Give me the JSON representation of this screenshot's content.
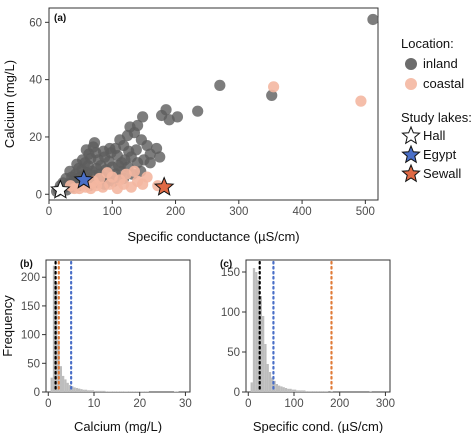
{
  "colors": {
    "inland": "#5c5c5c",
    "coastal": "#f4b7a1",
    "hall": "#ffffff",
    "egypt": "#4a6fc7",
    "sewall": "#e06a45",
    "hist": "#bdbdbd",
    "median_line": "#000000",
    "egypt_line": "#4a6fc7",
    "sewall_line": "#e07b39"
  },
  "legend": {
    "location_title": "Location:",
    "location_items": [
      "inland",
      "coastal"
    ],
    "lakes_title": "Study lakes:",
    "lakes_items": [
      "Hall",
      "Egypt",
      "Sewall"
    ]
  },
  "chart_data": [
    {
      "id": "a",
      "panel_label": "(a)",
      "type": "scatter",
      "xlabel": "Specific conductance (µS/cm)",
      "ylabel": "Calcium (mg/L)",
      "xlim": [
        0,
        520
      ],
      "ylim": [
        -2,
        65
      ],
      "xticks": [
        0,
        100,
        200,
        300,
        400,
        500
      ],
      "yticks": [
        0,
        20,
        40,
        60
      ],
      "series": [
        {
          "name": "inland",
          "points": [
            [
              512,
              61
            ],
            [
              270,
              38
            ],
            [
              352,
              34.5
            ],
            [
              235,
              29
            ],
            [
              203,
              27
            ],
            [
              185,
              29.5
            ],
            [
              178,
              27.5
            ],
            [
              190,
              26
            ],
            [
              148,
              27
            ],
            [
              140,
              24
            ],
            [
              128,
              23.5
            ],
            [
              135,
              21.5
            ],
            [
              124,
              20.5
            ],
            [
              146,
              19
            ],
            [
              155,
              17
            ],
            [
              112,
              19
            ],
            [
              118,
              17
            ],
            [
              105,
              16
            ],
            [
              72,
              18
            ],
            [
              98,
              14.5
            ],
            [
              88,
              13
            ],
            [
              126,
              15
            ],
            [
              138,
              15.5
            ],
            [
              160,
              14
            ],
            [
              170,
              16
            ],
            [
              150,
              12
            ],
            [
              115,
              11
            ],
            [
              95,
              11.5
            ],
            [
              82,
              10
            ],
            [
              75,
              9
            ],
            [
              68,
              8
            ],
            [
              60,
              7.5
            ],
            [
              55,
              6.5
            ],
            [
              50,
              6
            ],
            [
              45,
              5.5
            ],
            [
              40,
              5
            ],
            [
              35,
              4
            ],
            [
              30,
              3.5
            ],
            [
              25,
              2.5
            ],
            [
              20,
              2
            ],
            [
              15,
              1.5
            ],
            [
              65,
              5
            ],
            [
              70,
              6.5
            ],
            [
              80,
              7
            ],
            [
              90,
              8.5
            ],
            [
              100,
              9.5
            ],
            [
              110,
              10
            ],
            [
              120,
              12
            ],
            [
              130,
              13
            ],
            [
              58,
              4
            ],
            [
              48,
              3
            ],
            [
              38,
              2.5
            ],
            [
              28,
              1.5
            ],
            [
              42,
              7
            ],
            [
              52,
              8.5
            ],
            [
              62,
              10
            ],
            [
              78,
              12
            ],
            [
              85,
              6
            ],
            [
              92,
              5
            ],
            [
              105,
              7
            ],
            [
              115,
              8
            ],
            [
              125,
              9.5
            ],
            [
              140,
              11
            ],
            [
              160,
              11
            ],
            [
              175,
              13
            ],
            [
              108,
              13.5
            ],
            [
              96,
              16
            ],
            [
              86,
              15
            ],
            [
              66,
              12.5
            ],
            [
              74,
              14.5
            ],
            [
              57,
              11
            ],
            [
              47,
              9
            ],
            [
              36,
              6
            ],
            [
              33,
              8
            ],
            [
              44,
              10.5
            ],
            [
              53,
              12
            ],
            [
              63,
              14
            ],
            [
              22,
              4
            ],
            [
              27,
              5.5
            ],
            [
              18,
              3
            ],
            [
              12,
              1
            ],
            [
              64,
              3
            ],
            [
              76,
              4
            ],
            [
              88,
              3.5
            ],
            [
              102,
              4.5
            ],
            [
              118,
              5.5
            ],
            [
              132,
              7
            ],
            [
              145,
              8
            ],
            [
              59,
              15.5
            ],
            [
              70,
              16.5
            ]
          ]
        },
        {
          "name": "coastal",
          "points": [
            [
              355,
              37.5
            ],
            [
              493,
              32.5
            ],
            [
              140,
              4.5
            ],
            [
              155,
              6
            ],
            [
              172,
              3
            ],
            [
              130,
              2.5
            ],
            [
              118,
              3.5
            ],
            [
              108,
              2
            ],
            [
              96,
              3.5
            ],
            [
              85,
              2.5
            ],
            [
              75,
              3
            ],
            [
              66,
              2
            ],
            [
              58,
              2.5
            ],
            [
              48,
              2
            ],
            [
              40,
              2
            ],
            [
              34,
              3
            ],
            [
              100,
              6
            ],
            [
              122,
              7
            ],
            [
              112,
              5
            ],
            [
              92,
              7.5
            ],
            [
              80,
              5.5
            ],
            [
              70,
              4.5
            ],
            [
              135,
              8
            ],
            [
              148,
              3.5
            ]
          ]
        },
        {
          "name": "Hall",
          "points": [
            [
              18,
              1.5
            ]
          ]
        },
        {
          "name": "Egypt",
          "points": [
            [
              55,
              5
            ]
          ]
        },
        {
          "name": "Sewall",
          "points": [
            [
              182,
              2.5
            ]
          ]
        }
      ]
    },
    {
      "id": "b",
      "panel_label": "(b)",
      "type": "bar",
      "xlabel": "Calcium (mg/L)",
      "ylabel": "Frequency",
      "xlim": [
        -0.5,
        31
      ],
      "ylim": [
        0,
        230
      ],
      "xticks": [
        0,
        10,
        20,
        30
      ],
      "yticks": [
        0,
        50,
        100,
        150,
        200
      ],
      "bin_start": 0,
      "bin_width": 0.5,
      "counts": [
        0,
        25,
        220,
        190,
        90,
        45,
        28,
        22,
        16,
        12,
        10,
        8,
        7,
        6,
        5,
        4,
        4,
        3,
        3,
        3,
        2,
        2,
        2,
        2,
        2,
        1,
        1,
        1,
        1,
        1,
        1,
        1,
        1,
        1,
        1,
        1,
        1,
        1,
        1,
        1,
        1,
        1,
        1,
        1,
        0,
        0,
        0,
        0,
        0,
        0,
        0,
        0,
        0,
        0,
        0,
        1,
        1,
        0,
        0,
        0
      ],
      "reference_lines": [
        {
          "name": "median",
          "x": 1.6
        },
        {
          "name": "Egypt",
          "x": 5.0
        },
        {
          "name": "Sewall",
          "x": 2.3
        },
        {
          "name": "Hall",
          "x": 1.1
        }
      ]
    },
    {
      "id": "c",
      "panel_label": "(c)",
      "type": "bar",
      "xlabel": "Specific cond. (µS/cm)",
      "ylabel": "",
      "xlim": [
        -5,
        310
      ],
      "ylim": [
        0,
        165
      ],
      "xticks": [
        0,
        100,
        200,
        300
      ],
      "yticks": [
        0,
        50,
        100,
        150
      ],
      "bin_start": 0,
      "bin_width": 5,
      "counts": [
        0,
        12,
        155,
        150,
        140,
        120,
        95,
        60,
        35,
        25,
        18,
        14,
        10,
        8,
        7,
        6,
        5,
        4,
        4,
        3,
        3,
        2,
        2,
        2,
        2,
        1,
        1,
        1,
        1,
        1,
        1,
        1,
        1,
        1,
        1,
        0,
        1,
        0,
        0,
        0,
        0,
        0,
        0,
        0,
        0,
        0,
        0,
        0,
        0,
        0,
        0,
        0,
        0,
        1,
        0,
        0,
        0,
        0,
        0,
        0
      ],
      "reference_lines": [
        {
          "name": "median",
          "x": 25
        },
        {
          "name": "Egypt",
          "x": 55
        },
        {
          "name": "Sewall",
          "x": 182
        },
        {
          "name": "Hall",
          "x": 18
        }
      ]
    }
  ]
}
